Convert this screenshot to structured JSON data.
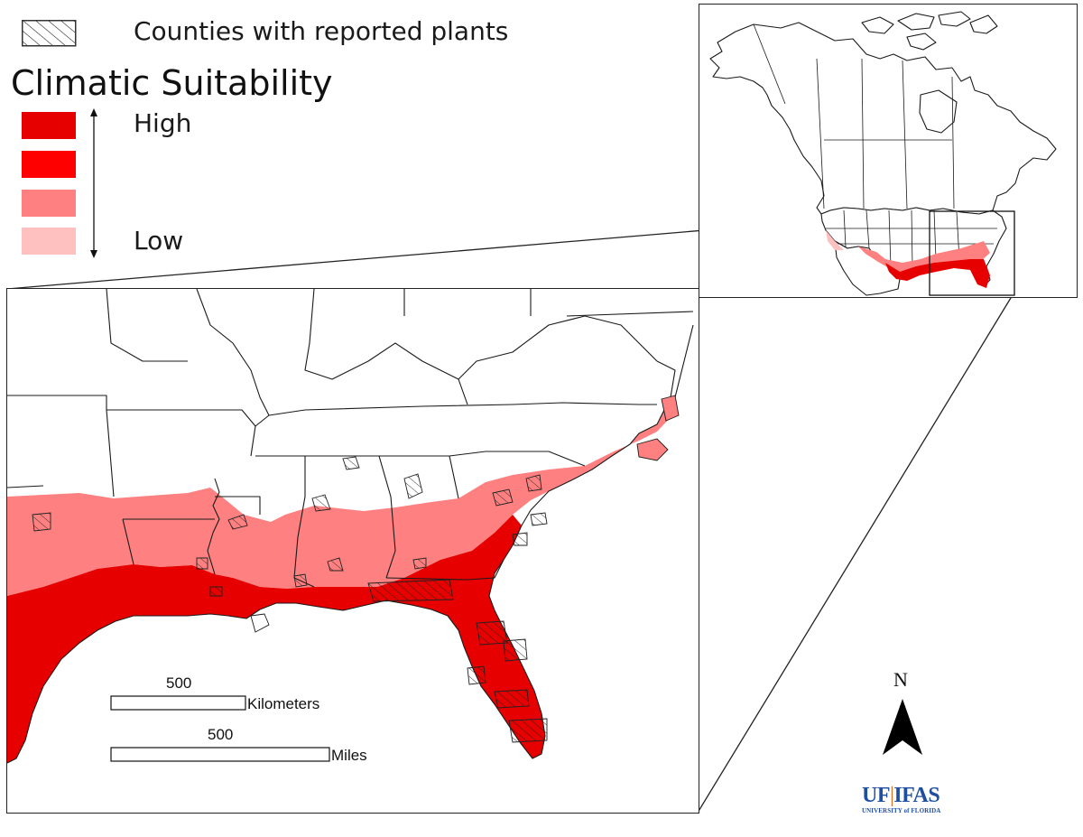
{
  "legend": {
    "reported_label": "Counties with reported plants",
    "title": "Climatic Suitability",
    "high_label": "High",
    "low_label": "Low",
    "classes": [
      {
        "level": "highest",
        "color": "#e60000"
      },
      {
        "level": "high",
        "color": "#ff0000"
      },
      {
        "level": "moderate",
        "color": "#ff8080"
      },
      {
        "level": "low",
        "color": "#ffc0c0"
      }
    ]
  },
  "colors": {
    "suitability_highest": "#e60000",
    "suitability_moderate": "#ff8080",
    "suitability_low": "#ffc0c0",
    "borders": "#1a1a1a",
    "hatch": "#222222"
  },
  "scalebar": {
    "km_value": "500",
    "km_unit": "Kilometers",
    "mi_value": "500",
    "mi_unit": "Miles"
  },
  "north_arrow": {
    "label": "N"
  },
  "logo": {
    "left": "UF",
    "right": "IFAS",
    "sub": "UNIVERSITY of FLORIDA"
  }
}
